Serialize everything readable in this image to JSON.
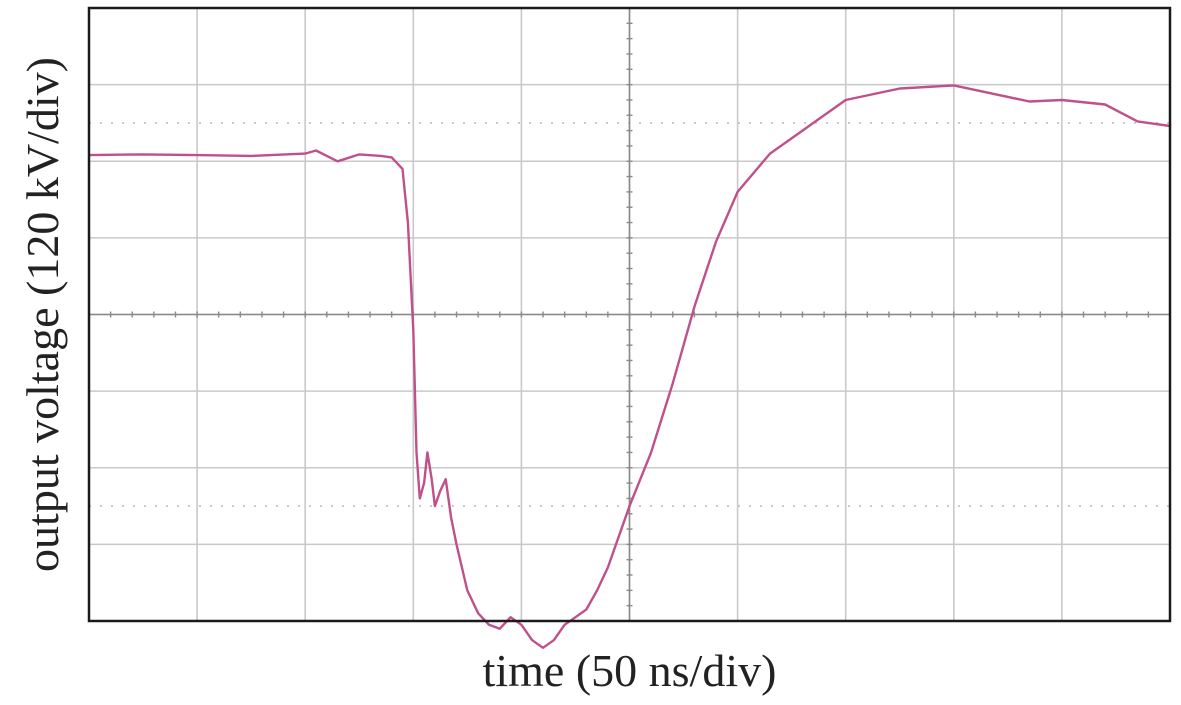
{
  "chart_data": {
    "type": "line",
    "xlabel": "time (50 ns/div)",
    "ylabel": "output voltage (120 kV/div)",
    "divisions": {
      "x": 10,
      "y": 8
    },
    "xlim": [
      0,
      10
    ],
    "ylim": [
      -4,
      4
    ],
    "x_unit": "div",
    "y_unit": "div",
    "grid": true,
    "dotted_reference_lines_y": [
      2.5,
      -2.5
    ],
    "series": [
      {
        "color": "#c0508a",
        "x": [
          0,
          0.5,
          1.0,
          1.5,
          2.0,
          2.1,
          2.2,
          2.3,
          2.5,
          2.7,
          2.8,
          2.9,
          2.95,
          3.0,
          3.03,
          3.06,
          3.1,
          3.13,
          3.17,
          3.2,
          3.25,
          3.3,
          3.35,
          3.4,
          3.45,
          3.5,
          3.6,
          3.7,
          3.8,
          3.9,
          4.0,
          4.1,
          4.2,
          4.3,
          4.4,
          4.5,
          4.6,
          4.7,
          4.8,
          4.9,
          5.0,
          5.2,
          5.4,
          5.5,
          5.6,
          5.8,
          6.0,
          6.3,
          6.6,
          7.0,
          7.5,
          8.0,
          8.3,
          8.7,
          9.0,
          9.4,
          9.7,
          10.0
        ],
        "y": [
          2.08,
          2.09,
          2.08,
          2.07,
          2.1,
          2.14,
          2.07,
          2.0,
          2.09,
          2.07,
          2.05,
          1.9,
          1.2,
          -0.2,
          -1.8,
          -2.4,
          -2.2,
          -1.8,
          -2.15,
          -2.5,
          -2.3,
          -2.15,
          -2.65,
          -3.0,
          -3.3,
          -3.6,
          -3.9,
          -4.05,
          -4.1,
          -3.95,
          -4.05,
          -4.25,
          -4.35,
          -4.25,
          -4.05,
          -3.95,
          -3.85,
          -3.6,
          -3.3,
          -2.9,
          -2.5,
          -1.8,
          -0.9,
          -0.4,
          0.1,
          0.95,
          1.6,
          2.1,
          2.4,
          2.8,
          2.95,
          2.99,
          2.9,
          2.78,
          2.8,
          2.74,
          2.52,
          2.46
        ]
      }
    ]
  }
}
